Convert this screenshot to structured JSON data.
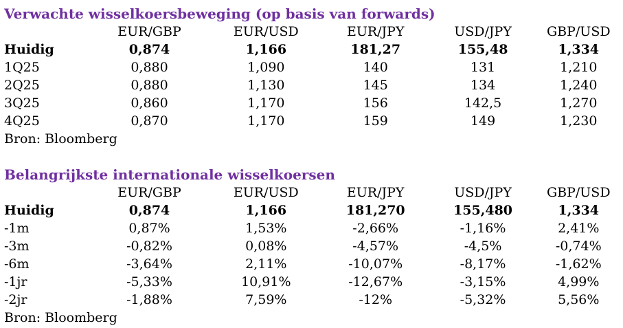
{
  "section1": {
    "title": "Verwachte wisselkoersbeweging (op basis van forwards)",
    "columns": [
      "EUR/GBP",
      "EUR/USD",
      "EUR/JPY",
      "USD/JPY",
      "GBP/USD"
    ],
    "rows": [
      {
        "label": "Huidig",
        "bold": true,
        "values": [
          "0,874",
          "1,166",
          "181,27",
          "155,48",
          "1,334"
        ]
      },
      {
        "label": "1Q25",
        "bold": false,
        "values": [
          "0,880",
          "1,090",
          "140",
          "131",
          "1,210"
        ]
      },
      {
        "label": "2Q25",
        "bold": false,
        "values": [
          "0,880",
          "1,130",
          "145",
          "134",
          "1,240"
        ]
      },
      {
        "label": "3Q25",
        "bold": false,
        "values": [
          "0,860",
          "1,170",
          "156",
          "142,5",
          "1,270"
        ]
      },
      {
        "label": "4Q25",
        "bold": false,
        "values": [
          "0,870",
          "1,170",
          "159",
          "149",
          "1,230"
        ]
      }
    ],
    "source": "Bron: Bloomberg"
  },
  "section2": {
    "title": "Belangrijkste internationale wisselkoersen",
    "columns": [
      "EUR/GBP",
      "EUR/USD",
      "EUR/JPY",
      "USD/JPY",
      "GBP/USD"
    ],
    "rows": [
      {
        "label": "Huidig",
        "bold": true,
        "values": [
          "0,874",
          "1,166",
          "181,270",
          "155,480",
          "1,334"
        ]
      },
      {
        "label": "-1m",
        "bold": false,
        "values": [
          "0,87%",
          "1,53%",
          "-2,66%",
          "-1,16%",
          "2,41%"
        ]
      },
      {
        "label": "-3m",
        "bold": false,
        "values": [
          "-0,82%",
          "0,08%",
          "-4,57%",
          "-4,5%",
          "-0,74%"
        ]
      },
      {
        "label": "-6m",
        "bold": false,
        "values": [
          "-3,64%",
          "2,11%",
          "-10,07%",
          "-8,17%",
          "-1,62%"
        ]
      },
      {
        "label": "-1jr",
        "bold": false,
        "values": [
          "-5,33%",
          "10,91%",
          "-12,67%",
          "-3,15%",
          "4,99%"
        ]
      },
      {
        "label": "-2jr",
        "bold": false,
        "values": [
          "-1,88%",
          "7,59%",
          "-12%",
          "-5,32%",
          "5,56%"
        ]
      }
    ],
    "source": "Bron: Bloomberg"
  },
  "colors": {
    "title": "#7030a0",
    "text": "#000000",
    "background": "#ffffff"
  }
}
